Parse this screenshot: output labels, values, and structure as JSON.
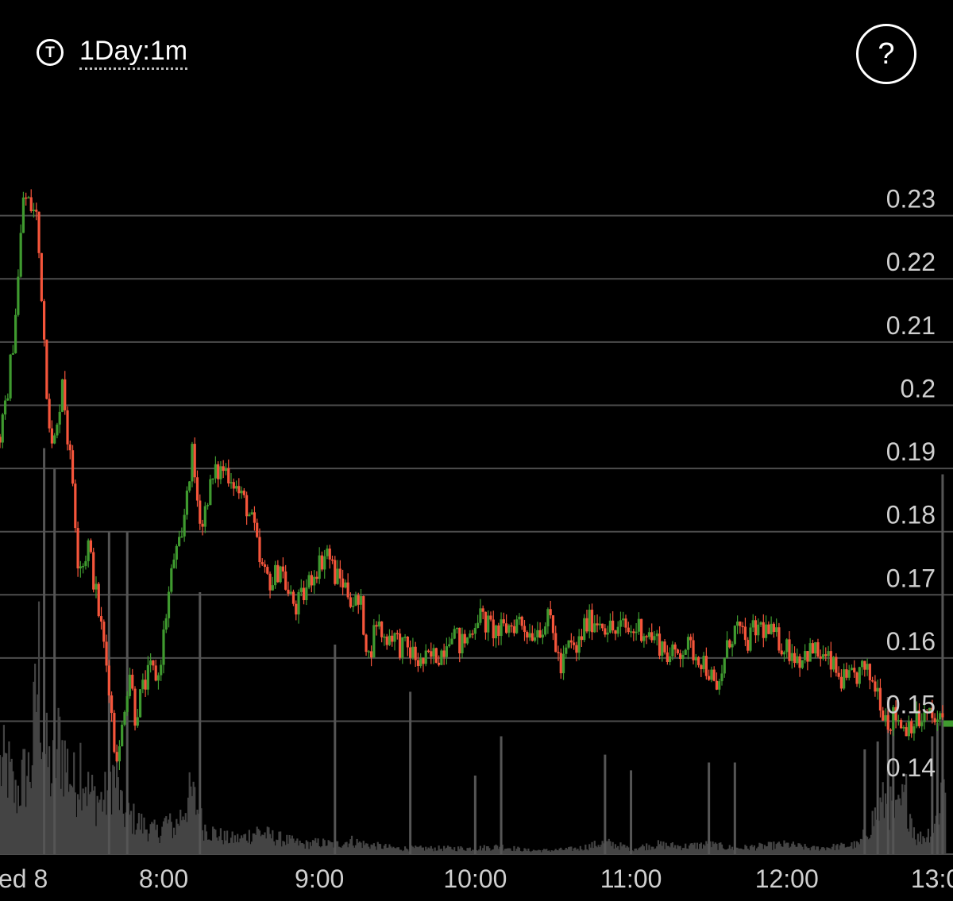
{
  "header": {
    "timeframe_icon_letter": "T",
    "timeframe_label": "1Day:1m",
    "help_symbol": "?"
  },
  "colors": {
    "up": "#3f9a2f",
    "down": "#f5553b",
    "volume": "#444444",
    "grid": "#4d4d4d",
    "text": "#cfcfcf",
    "last_price_marker": "#3f9a2f"
  },
  "chart_data": {
    "type": "candlestick",
    "title": "",
    "xlabel": "",
    "ylabel": "",
    "ylim": [
      0.1365,
      0.2395
    ],
    "x_tick_labels": [
      {
        "label": "ed 8",
        "t": "07:00"
      },
      {
        "label": "8:00",
        "t": "08:00"
      },
      {
        "label": "9:00",
        "t": "09:00"
      },
      {
        "label": "10:00",
        "t": "10:00"
      },
      {
        "label": "11:00",
        "t": "11:00"
      },
      {
        "label": "12:00",
        "t": "12:00"
      },
      {
        "label": "13:00",
        "t": "13:00"
      }
    ],
    "y_tick_labels": [
      "0.23",
      "0.22",
      "0.21",
      "0.2",
      "0.19",
      "0.18",
      "0.17",
      "0.16",
      "0.15",
      "0.14"
    ],
    "y_tick_values": [
      0.23,
      0.22,
      0.21,
      0.2,
      0.19,
      0.18,
      0.17,
      0.16,
      0.15,
      0.14
    ],
    "last_price": 0.15,
    "price_path": [
      [
        "06:58",
        0.195
      ],
      [
        "07:00",
        0.199
      ],
      [
        "07:03",
        0.21
      ],
      [
        "07:05",
        0.22
      ],
      [
        "07:07",
        0.233
      ],
      [
        "07:09",
        0.232
      ],
      [
        "07:12",
        0.23
      ],
      [
        "07:14",
        0.218
      ],
      [
        "07:16",
        0.203
      ],
      [
        "07:18",
        0.193
      ],
      [
        "07:20",
        0.196
      ],
      [
        "07:22",
        0.205
      ],
      [
        "07:24",
        0.195
      ],
      [
        "07:26",
        0.188
      ],
      [
        "07:28",
        0.176
      ],
      [
        "07:30",
        0.175
      ],
      [
        "07:32",
        0.178
      ],
      [
        "07:35",
        0.17
      ],
      [
        "07:38",
        0.162
      ],
      [
        "07:40",
        0.156
      ],
      [
        "07:42",
        0.146
      ],
      [
        "07:44",
        0.145
      ],
      [
        "07:46",
        0.153
      ],
      [
        "07:48",
        0.158
      ],
      [
        "07:50",
        0.151
      ],
      [
        "07:53",
        0.155
      ],
      [
        "07:56",
        0.158
      ],
      [
        "07:59",
        0.157
      ],
      [
        "08:02",
        0.167
      ],
      [
        "08:05",
        0.176
      ],
      [
        "08:08",
        0.178
      ],
      [
        "08:10",
        0.187
      ],
      [
        "08:12",
        0.192
      ],
      [
        "08:14",
        0.185
      ],
      [
        "08:16",
        0.181
      ],
      [
        "08:18",
        0.186
      ],
      [
        "08:21",
        0.189
      ],
      [
        "08:24",
        0.19
      ],
      [
        "08:27",
        0.189
      ],
      [
        "08:30",
        0.186
      ],
      [
        "08:33",
        0.184
      ],
      [
        "08:36",
        0.18
      ],
      [
        "08:38",
        0.175
      ],
      [
        "08:40",
        0.173
      ],
      [
        "08:43",
        0.172
      ],
      [
        "08:46",
        0.175
      ],
      [
        "08:49",
        0.17
      ],
      [
        "08:52",
        0.168
      ],
      [
        "08:55",
        0.17
      ],
      [
        "08:58",
        0.173
      ],
      [
        "09:01",
        0.175
      ],
      [
        "09:04",
        0.177
      ],
      [
        "09:07",
        0.173
      ],
      [
        "09:10",
        0.172
      ],
      [
        "09:14",
        0.169
      ],
      [
        "09:17",
        0.168
      ],
      [
        "09:20",
        0.16
      ],
      [
        "09:23",
        0.166
      ],
      [
        "09:26",
        0.163
      ],
      [
        "09:29",
        0.164
      ],
      [
        "09:32",
        0.162
      ],
      [
        "09:36",
        0.161
      ],
      [
        "09:40",
        0.159
      ],
      [
        "09:44",
        0.16
      ],
      [
        "09:48",
        0.161
      ],
      [
        "09:52",
        0.165
      ],
      [
        "09:55",
        0.162
      ],
      [
        "09:58",
        0.163
      ],
      [
        "10:02",
        0.167
      ],
      [
        "10:06",
        0.165
      ],
      [
        "10:10",
        0.164
      ],
      [
        "10:14",
        0.165
      ],
      [
        "10:18",
        0.166
      ],
      [
        "10:22",
        0.164
      ],
      [
        "10:26",
        0.165
      ],
      [
        "10:30",
        0.166
      ],
      [
        "10:34",
        0.158
      ],
      [
        "10:37",
        0.162
      ],
      [
        "10:40",
        0.161
      ],
      [
        "10:43",
        0.165
      ],
      [
        "10:46",
        0.166
      ],
      [
        "10:49",
        0.166
      ],
      [
        "10:52",
        0.165
      ],
      [
        "10:55",
        0.164
      ],
      [
        "10:58",
        0.165
      ],
      [
        "11:01",
        0.164
      ],
      [
        "11:04",
        0.165
      ],
      [
        "11:07",
        0.164
      ],
      [
        "11:10",
        0.163
      ],
      [
        "11:13",
        0.162
      ],
      [
        "11:16",
        0.16
      ],
      [
        "11:19",
        0.161
      ],
      [
        "11:22",
        0.162
      ],
      [
        "11:25",
        0.161
      ],
      [
        "11:28",
        0.16
      ],
      [
        "11:31",
        0.158
      ],
      [
        "11:34",
        0.154
      ],
      [
        "11:36",
        0.158
      ],
      [
        "11:39",
        0.163
      ],
      [
        "11:42",
        0.165
      ],
      [
        "11:45",
        0.162
      ],
      [
        "11:48",
        0.164
      ],
      [
        "11:51",
        0.165
      ],
      [
        "11:54",
        0.164
      ],
      [
        "11:57",
        0.163
      ],
      [
        "12:00",
        0.162
      ],
      [
        "12:03",
        0.161
      ],
      [
        "12:06",
        0.16
      ],
      [
        "12:09",
        0.161
      ],
      [
        "12:12",
        0.161
      ],
      [
        "12:15",
        0.16
      ],
      [
        "12:18",
        0.159
      ],
      [
        "12:21",
        0.157
      ],
      [
        "12:24",
        0.156
      ],
      [
        "12:27",
        0.157
      ],
      [
        "12:30",
        0.158
      ],
      [
        "12:33",
        0.157
      ],
      [
        "12:36",
        0.155
      ],
      [
        "12:38",
        0.152
      ],
      [
        "12:40",
        0.15
      ],
      [
        "12:43",
        0.151
      ],
      [
        "12:46",
        0.149
      ],
      [
        "12:49",
        0.15
      ],
      [
        "12:52",
        0.15
      ],
      [
        "12:55",
        0.151
      ],
      [
        "12:58",
        0.15
      ],
      [
        "13:00",
        0.15
      ]
    ],
    "volume_peaks": [
      [
        "07:00",
        0.45
      ],
      [
        "07:03",
        0.3
      ],
      [
        "07:06",
        0.4
      ],
      [
        "07:09",
        0.45
      ],
      [
        "07:12",
        1.0
      ],
      [
        "07:14",
        0.55
      ],
      [
        "07:17",
        0.4
      ],
      [
        "07:20",
        0.6
      ],
      [
        "07:22",
        0.5
      ],
      [
        "07:24",
        0.42
      ],
      [
        "07:26",
        0.35
      ],
      [
        "07:28",
        0.5
      ],
      [
        "07:31",
        0.33
      ],
      [
        "07:33",
        0.3
      ],
      [
        "07:36",
        0.28
      ],
      [
        "07:38",
        0.3
      ],
      [
        "07:40",
        0.42
      ],
      [
        "07:42",
        0.38
      ],
      [
        "07:44",
        0.22
      ],
      [
        "07:46",
        0.2
      ],
      [
        "07:49",
        0.18
      ],
      [
        "07:52",
        0.15
      ],
      [
        "07:55",
        0.13
      ],
      [
        "07:58",
        0.11
      ],
      [
        "08:01",
        0.17
      ],
      [
        "08:04",
        0.13
      ],
      [
        "08:07",
        0.21
      ],
      [
        "08:09",
        0.28
      ],
      [
        "08:11",
        0.3
      ],
      [
        "08:13",
        0.24
      ],
      [
        "08:15",
        0.15
      ],
      [
        "08:18",
        0.12
      ],
      [
        "08:21",
        0.1
      ],
      [
        "08:25",
        0.08
      ],
      [
        "08:30",
        0.08
      ],
      [
        "08:36",
        0.12
      ],
      [
        "08:42",
        0.09
      ],
      [
        "08:48",
        0.07
      ],
      [
        "08:54",
        0.05
      ],
      [
        "09:00",
        0.06
      ],
      [
        "09:06",
        0.05
      ],
      [
        "09:12",
        0.07
      ],
      [
        "09:18",
        0.05
      ],
      [
        "09:24",
        0.04
      ],
      [
        "09:30",
        0.03
      ],
      [
        "09:40",
        0.03
      ],
      [
        "09:50",
        0.03
      ],
      [
        "10:00",
        0.03
      ],
      [
        "10:10",
        0.04
      ],
      [
        "10:20",
        0.02
      ],
      [
        "10:30",
        0.02
      ],
      [
        "10:40",
        0.03
      ],
      [
        "10:50",
        0.06
      ],
      [
        "11:00",
        0.03
      ],
      [
        "11:10",
        0.05
      ],
      [
        "11:20",
        0.04
      ],
      [
        "11:30",
        0.05
      ],
      [
        "11:40",
        0.03
      ],
      [
        "11:50",
        0.04
      ],
      [
        "12:00",
        0.05
      ],
      [
        "12:10",
        0.03
      ],
      [
        "12:20",
        0.04
      ],
      [
        "12:28",
        0.05
      ],
      [
        "12:34",
        0.2
      ],
      [
        "12:38",
        0.28
      ],
      [
        "12:42",
        0.2
      ],
      [
        "12:46",
        0.3
      ],
      [
        "12:50",
        0.08
      ],
      [
        "12:54",
        0.1
      ],
      [
        "12:58",
        0.18
      ],
      [
        "13:00",
        0.4
      ]
    ],
    "volume_spikes": [
      [
        "07:14",
        1.55
      ],
      [
        "07:18",
        1.47
      ],
      [
        "07:39",
        1.23
      ],
      [
        "07:46",
        1.23
      ],
      [
        "08:14",
        1.0
      ],
      [
        "09:06",
        0.8
      ],
      [
        "09:35",
        0.62
      ],
      [
        "10:00",
        0.3
      ],
      [
        "10:10",
        0.45
      ],
      [
        "10:50",
        0.38
      ],
      [
        "11:00",
        0.32
      ],
      [
        "11:30",
        0.35
      ],
      [
        "11:40",
        0.35
      ],
      [
        "12:30",
        0.4
      ],
      [
        "12:35",
        0.43
      ],
      [
        "12:39",
        0.6
      ],
      [
        "12:41",
        0.55
      ],
      [
        "12:56",
        0.45
      ],
      [
        "12:58",
        0.5
      ],
      [
        "13:00",
        1.45
      ]
    ]
  }
}
